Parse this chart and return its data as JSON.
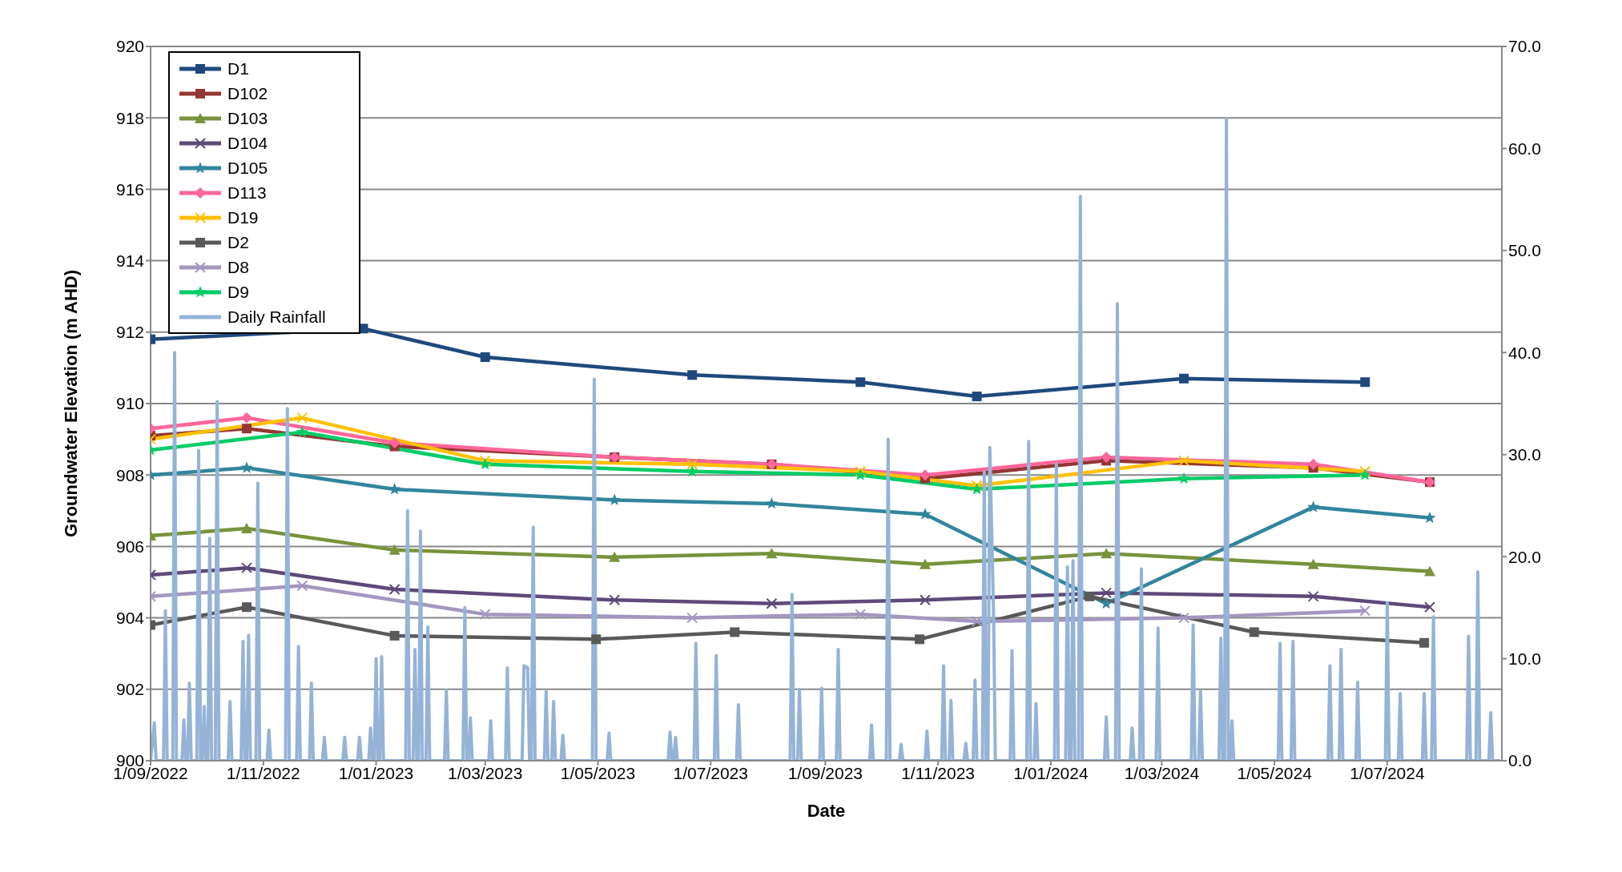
{
  "chart_data": {
    "type": "line",
    "xlabel": "Date",
    "ylabel": "Groundwater Elevation (m AHD)",
    "xlim": [
      "2022-09-01",
      "2024-09-01"
    ],
    "xticks": [
      {
        "value": "2022-09-01",
        "label": "1/09/2022"
      },
      {
        "value": "2022-11-01",
        "label": "1/11/2022"
      },
      {
        "value": "2023-01-01",
        "label": "1/01/2023"
      },
      {
        "value": "2023-03-01",
        "label": "1/03/2023"
      },
      {
        "value": "2023-05-01",
        "label": "1/05/2023"
      },
      {
        "value": "2023-07-01",
        "label": "1/07/2023"
      },
      {
        "value": "2023-09-01",
        "label": "1/09/2023"
      },
      {
        "value": "2023-11-01",
        "label": "1/11/2023"
      },
      {
        "value": "2024-01-01",
        "label": "1/01/2024"
      },
      {
        "value": "2024-03-01",
        "label": "1/03/2024"
      },
      {
        "value": "2024-05-01",
        "label": "1/05/2024"
      },
      {
        "value": "2024-07-01",
        "label": "1/07/2024"
      }
    ],
    "ylim": [
      900,
      920
    ],
    "yticks": [
      900,
      902,
      904,
      906,
      908,
      910,
      912,
      914,
      916,
      918,
      920
    ],
    "y2lim": [
      0,
      70
    ],
    "y2ticks": [
      {
        "value": 0,
        "label": "0.0"
      },
      {
        "value": 10,
        "label": "10.0"
      },
      {
        "value": 20,
        "label": "20.0"
      },
      {
        "value": 30,
        "label": "30.0"
      },
      {
        "value": 40,
        "label": "40.0"
      },
      {
        "value": 50,
        "label": "50.0"
      },
      {
        "value": 60,
        "label": "60.0"
      },
      {
        "value": 70,
        "label": "70.0"
      }
    ],
    "grid": "y",
    "legend": "top left",
    "line_style": "solid",
    "series": [
      {
        "name": "D1",
        "color": "#1f497d",
        "marker": "square",
        "x": [
          "2022-09-01",
          "2022-12-25",
          "2023-03-01",
          "2023-06-21",
          "2023-09-20",
          "2023-11-22",
          "2024-03-13",
          "2024-06-19"
        ],
        "values": [
          911.8,
          912.1,
          911.3,
          910.8,
          910.6,
          910.2,
          910.7,
          910.6
        ]
      },
      {
        "name": "D102",
        "color": "#943634",
        "marker": "square",
        "x": [
          "2022-09-01",
          "2022-10-23",
          "2023-01-11",
          "2023-05-10",
          "2023-08-03",
          "2023-10-25",
          "2024-01-31",
          "2024-05-22",
          "2024-07-24"
        ],
        "values": [
          909.1,
          909.3,
          908.8,
          908.5,
          908.3,
          907.9,
          908.4,
          908.2,
          907.8
        ]
      },
      {
        "name": "D103",
        "color": "#77933c",
        "marker": "triangle",
        "x": [
          "2022-09-01",
          "2022-10-23",
          "2023-01-11",
          "2023-05-10",
          "2023-08-03",
          "2023-10-25",
          "2024-01-31",
          "2024-05-22",
          "2024-07-24"
        ],
        "values": [
          906.3,
          906.5,
          905.9,
          905.7,
          905.8,
          905.5,
          905.8,
          905.5,
          905.3
        ]
      },
      {
        "name": "D104",
        "color": "#5f497a",
        "marker": "cross",
        "x": [
          "2022-09-01",
          "2022-10-23",
          "2023-01-11",
          "2023-05-10",
          "2023-08-03",
          "2023-10-25",
          "2024-01-31",
          "2024-05-22",
          "2024-07-24"
        ],
        "values": [
          905.2,
          905.4,
          904.8,
          904.5,
          904.4,
          904.5,
          904.7,
          904.6,
          904.3
        ]
      },
      {
        "name": "D105",
        "color": "#31859c",
        "marker": "star",
        "x": [
          "2022-09-01",
          "2022-10-23",
          "2023-01-11",
          "2023-05-10",
          "2023-08-03",
          "2023-10-25",
          "2024-01-31",
          "2024-05-22",
          "2024-07-24"
        ],
        "values": [
          908.0,
          908.2,
          907.6,
          907.3,
          907.2,
          906.9,
          904.4,
          907.1,
          906.8
        ]
      },
      {
        "name": "D113",
        "color": "#ff6699",
        "marker": "diamond",
        "x": [
          "2022-09-01",
          "2022-10-23",
          "2023-01-11",
          "2023-05-10",
          "2023-08-03",
          "2023-10-25",
          "2024-01-31",
          "2024-05-22",
          "2024-07-24"
        ],
        "values": [
          909.3,
          909.6,
          908.9,
          908.5,
          908.3,
          908.0,
          908.5,
          908.3,
          907.8
        ]
      },
      {
        "name": "D19",
        "color": "#ffc000",
        "marker": "cross",
        "x": [
          "2022-09-01",
          "2022-11-22",
          "2023-03-01",
          "2023-06-21",
          "2023-09-20",
          "2023-11-22",
          "2024-03-13",
          "2024-06-19"
        ],
        "values": [
          909.0,
          909.6,
          908.4,
          908.3,
          908.1,
          907.7,
          908.4,
          908.1
        ]
      },
      {
        "name": "D2",
        "color": "#595959",
        "marker": "square",
        "x": [
          "2022-09-01",
          "2022-10-23",
          "2023-01-11",
          "2023-04-30",
          "2023-07-14",
          "2023-10-22",
          "2024-01-22",
          "2024-04-20",
          "2024-07-21"
        ],
        "values": [
          903.8,
          904.3,
          903.5,
          903.4,
          903.6,
          903.4,
          904.6,
          903.6,
          903.3
        ]
      },
      {
        "name": "D8",
        "color": "#a496c0",
        "marker": "cross",
        "x": [
          "2022-09-01",
          "2022-11-22",
          "2023-03-01",
          "2023-06-21",
          "2023-09-20",
          "2023-11-22",
          "2024-03-13",
          "2024-06-19"
        ],
        "values": [
          904.6,
          904.9,
          904.1,
          904.0,
          904.1,
          903.9,
          904.0,
          904.2
        ]
      },
      {
        "name": "D9",
        "color": "#00cc66",
        "marker": "star",
        "x": [
          "2022-09-01",
          "2022-11-22",
          "2023-03-01",
          "2023-06-21",
          "2023-09-20",
          "2023-11-22",
          "2024-03-13",
          "2024-06-19"
        ],
        "values": [
          908.7,
          909.2,
          908.3,
          908.1,
          908.0,
          907.6,
          907.9,
          908.0
        ]
      },
      {
        "name": "Daily Rainfall",
        "color": "#95b3d7",
        "marker": "none",
        "axis": "y2",
        "x": [
          "2022-09-01",
          "2022-09-03",
          "2022-09-04",
          "2022-09-08",
          "2022-09-09",
          "2022-09-10",
          "2022-09-13",
          "2022-09-14",
          "2022-09-15",
          "2022-09-18",
          "2022-09-19",
          "2022-09-20",
          "2022-09-21",
          "2022-09-22",
          "2022-09-23",
          "2022-09-26",
          "2022-09-27",
          "2022-09-28",
          "2022-09-29",
          "2022-09-30",
          "2022-10-01",
          "2022-10-02",
          "2022-10-03",
          "2022-10-04",
          "2022-10-06",
          "2022-10-07",
          "2022-10-08",
          "2022-10-13",
          "2022-10-14",
          "2022-10-15",
          "2022-10-20",
          "2022-10-21",
          "2022-10-22",
          "2022-10-23",
          "2022-10-24",
          "2022-10-25",
          "2022-10-28",
          "2022-10-29",
          "2022-10-30",
          "2022-11-03",
          "2022-11-04",
          "2022-11-05",
          "2022-11-13",
          "2022-11-14",
          "2022-11-15",
          "2022-11-19",
          "2022-11-20",
          "2022-11-21",
          "2022-11-26",
          "2022-11-27",
          "2022-11-28",
          "2022-12-03",
          "2022-12-04",
          "2022-12-05",
          "2022-12-14",
          "2022-12-15",
          "2022-12-16",
          "2022-12-22",
          "2022-12-23",
          "2022-12-24",
          "2022-12-28",
          "2022-12-29",
          "2022-12-30",
          "2022-12-31",
          "2023-01-01",
          "2023-01-02",
          "2023-01-03",
          "2023-01-04",
          "2023-01-05",
          "2023-01-17",
          "2023-01-18",
          "2023-01-19",
          "2023-01-21",
          "2023-01-22",
          "2023-01-23",
          "2023-01-24",
          "2023-01-25",
          "2023-01-26",
          "2023-01-28",
          "2023-01-29",
          "2023-01-30",
          "2023-02-07",
          "2023-02-08",
          "2023-02-09",
          "2023-02-17",
          "2023-02-18",
          "2023-02-19",
          "2023-02-20",
          "2023-02-21",
          "2023-02-22",
          "2023-03-03",
          "2023-03-04",
          "2023-03-05",
          "2023-03-12",
          "2023-03-13",
          "2023-03-14",
          "2023-03-21",
          "2023-03-22",
          "2023-03-24",
          "2023-03-25",
          "2023-03-26",
          "2023-03-27",
          "2023-03-28",
          "2023-04-02",
          "2023-04-03",
          "2023-04-04",
          "2023-04-06",
          "2023-04-07",
          "2023-04-08",
          "2023-04-11",
          "2023-04-12",
          "2023-04-13",
          "2023-04-28",
          "2023-04-29",
          "2023-04-30",
          "2023-05-06",
          "2023-05-07",
          "2023-05-08",
          "2023-06-08",
          "2023-06-09",
          "2023-06-10",
          "2023-06-11",
          "2023-06-12",
          "2023-06-13",
          "2023-06-22",
          "2023-06-23",
          "2023-06-24",
          "2023-07-03",
          "2023-07-04",
          "2023-07-05",
          "2023-07-15",
          "2023-07-16",
          "2023-07-17",
          "2023-08-13",
          "2023-08-14",
          "2023-08-15",
          "2023-08-17",
          "2023-08-18",
          "2023-08-19",
          "2023-08-29",
          "2023-08-30",
          "2023-08-31",
          "2023-09-07",
          "2023-09-08",
          "2023-09-09",
          "2023-09-25",
          "2023-09-26",
          "2023-09-27",
          "2023-10-04",
          "2023-10-05",
          "2023-10-06",
          "2023-10-11",
          "2023-10-12",
          "2023-10-13",
          "2023-10-25",
          "2023-10-26",
          "2023-10-27",
          "2023-11-03",
          "2023-11-04",
          "2023-11-05",
          "2023-11-07",
          "2023-11-08",
          "2023-11-09",
          "2023-11-15",
          "2023-11-16",
          "2023-11-17",
          "2023-11-20",
          "2023-11-21",
          "2023-11-22",
          "2023-11-25",
          "2023-11-26",
          "2023-11-27",
          "2023-11-28",
          "2023-11-29",
          "2023-12-01",
          "2023-12-02",
          "2023-12-10",
          "2023-12-11",
          "2023-12-12",
          "2023-12-19",
          "2023-12-20",
          "2023-12-21",
          "2023-12-23",
          "2023-12-24",
          "2023-12-25",
          "2024-01-03",
          "2024-01-04",
          "2024-01-05",
          "2024-01-09",
          "2024-01-10",
          "2024-01-11",
          "2024-01-12",
          "2024-01-13",
          "2024-01-14",
          "2024-01-16",
          "2024-01-17",
          "2024-01-18",
          "2024-01-30",
          "2024-01-31",
          "2024-02-01",
          "2024-02-05",
          "2024-02-06",
          "2024-02-07",
          "2024-02-13",
          "2024-02-14",
          "2024-02-15",
          "2024-02-18",
          "2024-02-19",
          "2024-02-20",
          "2024-02-27",
          "2024-02-28",
          "2024-02-29",
          "2024-03-17",
          "2024-03-18",
          "2024-03-19",
          "2024-03-21",
          "2024-03-22",
          "2024-03-23",
          "2024-04-01",
          "2024-04-02",
          "2024-04-03",
          "2024-04-04",
          "2024-04-05",
          "2024-04-06",
          "2024-04-07",
          "2024-04-08",
          "2024-04-09",
          "2024-05-03",
          "2024-05-04",
          "2024-05-05",
          "2024-05-10",
          "2024-05-11",
          "2024-05-12",
          "2024-05-30",
          "2024-05-31",
          "2024-06-01",
          "2024-06-05",
          "2024-06-06",
          "2024-06-07",
          "2024-06-14",
          "2024-06-15",
          "2024-06-16",
          "2024-06-30",
          "2024-07-01",
          "2024-07-02",
          "2024-07-07",
          "2024-07-08",
          "2024-07-09",
          "2024-07-20",
          "2024-07-21",
          "2024-07-22",
          "2024-07-25",
          "2024-07-26",
          "2024-07-27",
          "2024-08-13",
          "2024-08-14",
          "2024-08-15",
          "2024-08-18",
          "2024-08-19",
          "2024-08-20",
          "2024-08-25",
          "2024-08-26",
          "2024-08-27",
          "2024-08-31"
        ],
        "values": [
          0,
          3.7,
          0,
          0,
          14.7,
          0,
          0,
          40,
          0,
          0,
          4,
          0,
          0,
          7.6,
          0,
          0,
          30.4,
          0,
          0,
          5.3,
          0,
          0,
          21.8,
          0,
          0,
          35.2,
          0,
          0,
          5.8,
          0,
          0,
          11.7,
          0,
          0,
          12.3,
          0,
          0,
          27.2,
          0,
          0,
          3,
          0,
          0,
          34.5,
          0,
          0,
          11.2,
          0,
          0,
          7.6,
          0,
          0,
          2.3,
          0,
          0,
          2.3,
          0,
          0,
          2.3,
          0,
          0,
          3.2,
          0,
          0,
          10,
          0,
          0,
          10.2,
          0,
          0,
          24.5,
          0,
          0,
          10.9,
          0,
          0,
          22.5,
          0,
          0,
          13.1,
          0,
          0,
          6.9,
          0,
          0,
          15,
          0,
          0,
          4.2,
          0,
          0,
          3.9,
          0,
          0,
          9.1,
          0,
          0,
          9.3,
          9.1,
          0,
          0,
          22.9,
          0,
          0,
          6.8,
          0,
          0,
          5.8,
          0,
          0,
          2.5,
          0,
          0,
          37.4,
          0,
          0,
          2.7,
          0,
          0,
          2.8,
          0,
          0,
          2.3,
          0,
          0,
          11.5,
          0,
          0,
          10.3,
          0,
          0,
          5.5,
          0,
          0,
          16.3,
          0,
          0,
          7,
          0,
          0,
          7.1,
          0,
          0,
          10.9,
          0,
          0,
          3.5,
          0,
          0,
          31.5,
          0,
          0,
          1.6,
          0,
          0,
          2.9,
          0,
          0,
          9.3,
          0,
          0,
          5.9,
          0,
          0,
          1.7,
          0,
          0,
          7.9,
          0,
          0,
          28.3,
          0,
          0,
          30.7,
          14.8,
          0,
          0,
          10.8,
          0,
          0,
          31.3,
          0,
          0,
          5.6,
          0,
          0,
          29.1,
          0,
          0,
          19,
          0,
          0,
          19.6,
          0,
          0,
          55.3,
          0,
          0,
          4.3,
          0,
          0,
          44.8,
          0,
          0,
          3.2,
          0,
          0,
          18.8,
          0,
          0,
          13,
          0,
          0,
          13.3,
          0,
          0,
          6.8,
          0,
          0,
          12,
          0,
          0,
          62.9,
          0,
          0,
          3.9,
          0,
          0,
          11.5,
          0,
          0,
          11.7,
          0,
          0,
          9.3,
          0,
          0,
          10.9,
          0,
          0,
          7.7,
          0,
          0,
          15.5,
          0,
          0,
          6.6,
          0,
          0,
          6.6,
          0,
          0,
          14.1,
          0,
          0,
          12.2,
          0,
          0,
          18.5,
          0,
          0,
          4.7,
          0,
          0
        ]
      }
    ]
  }
}
